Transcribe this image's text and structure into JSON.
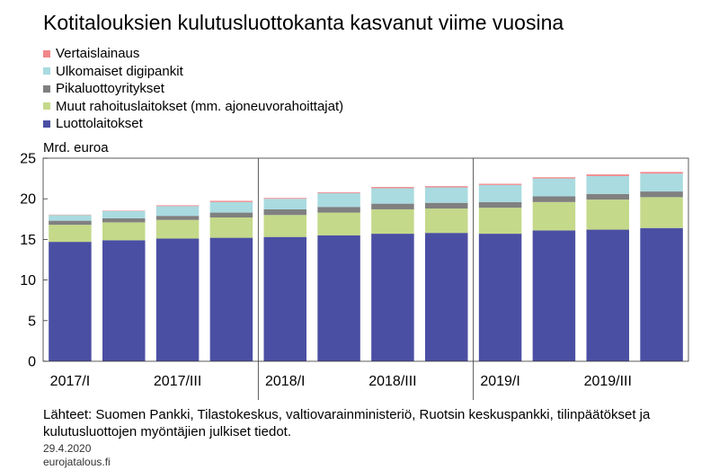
{
  "title": "Kotitalouksien kulutusluottokanta kasvanut viime vuosina",
  "unit_label": "Mrd. euroa",
  "source": "Lähteet: Suomen Pankki, Tilastokeskus, valtiovarainministeriö, Ruotsin keskuspankki, tilinpäätökset ja kulutusluottojen myöntäjien julkiset tiedot.",
  "date": "29.4.2020",
  "site": "eurojatalous.fi",
  "legend": [
    {
      "label": "Vertaislainaus",
      "color": "#f0868a"
    },
    {
      "label": "Ulkomaiset digipankit",
      "color": "#a9dbe0"
    },
    {
      "label": "Pikaluottoyritykset",
      "color": "#808080"
    },
    {
      "label": "Muut rahoituslaitokset (mm. ajoneuvorahoittajat)",
      "color": "#c4d98a"
    },
    {
      "label": "Luottolaitokset",
      "color": "#4b4fa3"
    }
  ],
  "chart_data": {
    "type": "bar",
    "stacked": true,
    "categories": [
      "2017/I",
      "2017/II",
      "2017/III",
      "2017/IV",
      "2018/I",
      "2018/II",
      "2018/III",
      "2018/IV",
      "2019/I",
      "2019/II",
      "2019/III",
      "2019/IV"
    ],
    "x_tick_labels": [
      "2017/I",
      "2017/III",
      "2018/I",
      "2018/III",
      "2019/I",
      "2019/III"
    ],
    "ylabel": "Mrd. euroa",
    "ylim": [
      0,
      25
    ],
    "yticks": [
      0,
      5,
      10,
      15,
      20,
      25
    ],
    "grid": false,
    "series": [
      {
        "name": "Luottolaitokset",
        "color": "#4b4fa3",
        "values": [
          14.7,
          14.9,
          15.1,
          15.2,
          15.3,
          15.5,
          15.7,
          15.8,
          15.7,
          16.1,
          16.2,
          16.4
        ]
      },
      {
        "name": "Muut rahoituslaitokset (mm. ajoneuvorahoittajat)",
        "color": "#c4d98a",
        "values": [
          2.1,
          2.2,
          2.3,
          2.5,
          2.7,
          2.8,
          3.0,
          3.0,
          3.2,
          3.5,
          3.7,
          3.8
        ]
      },
      {
        "name": "Pikaluottoyritykset",
        "color": "#808080",
        "values": [
          0.5,
          0.5,
          0.5,
          0.6,
          0.7,
          0.7,
          0.7,
          0.7,
          0.7,
          0.7,
          0.7,
          0.7
        ]
      },
      {
        "name": "Ulkomaiset digipankit",
        "color": "#a9dbe0",
        "values": [
          0.7,
          0.9,
          1.2,
          1.3,
          1.3,
          1.7,
          1.9,
          1.9,
          2.1,
          2.2,
          2.2,
          2.2
        ]
      },
      {
        "name": "Vertaislainaus",
        "color": "#f0868a",
        "values": [
          0.05,
          0.05,
          0.1,
          0.15,
          0.1,
          0.1,
          0.15,
          0.15,
          0.15,
          0.15,
          0.2,
          0.2
        ]
      }
    ]
  }
}
